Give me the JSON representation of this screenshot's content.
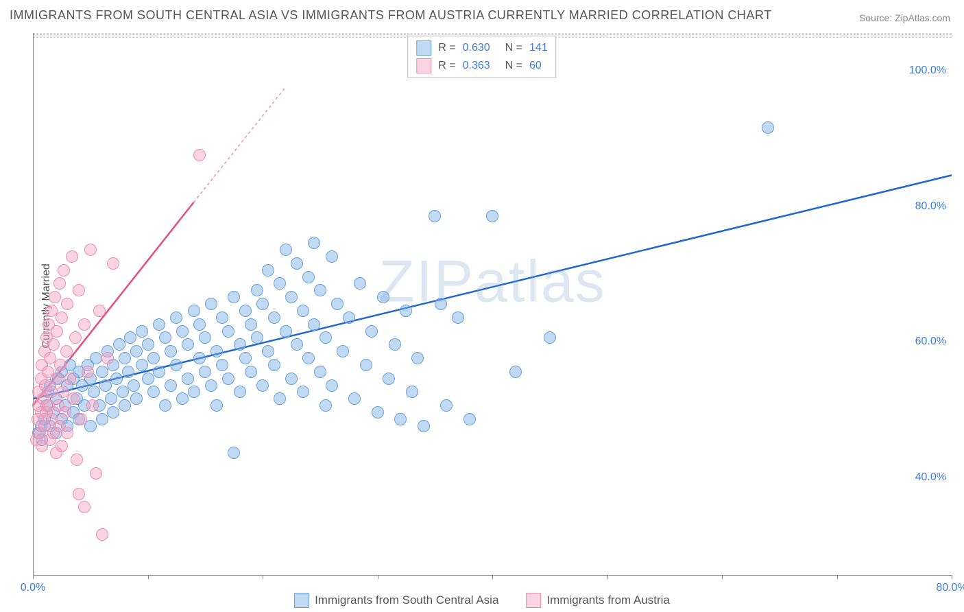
{
  "title": "IMMIGRANTS FROM SOUTH CENTRAL ASIA VS IMMIGRANTS FROM AUSTRIA CURRENTLY MARRIED CORRELATION CHART",
  "source": "Source: ZipAtlas.com",
  "ylabel": "Currently Married",
  "watermark": "ZIPatlas",
  "chart": {
    "type": "scatter",
    "background_color": "#ffffff",
    "grid_color": "#cccccc",
    "xlim": [
      0,
      80
    ],
    "ylim": [
      25,
      105
    ],
    "ytick_values": [
      40,
      60,
      80,
      100
    ],
    "ytick_labels": [
      "40.0%",
      "60.0%",
      "80.0%",
      "100.0%"
    ],
    "xtick_values": [
      0,
      10,
      20,
      30,
      40,
      50,
      60,
      70,
      80
    ],
    "xtick_labels": [
      "0.0%",
      "",
      "",
      "",
      "",
      "",
      "",
      "",
      "80.0%"
    ],
    "marker_radius": 8,
    "marker_border_width": 1.5,
    "series": [
      {
        "name": "Immigrants from South Central Asia",
        "fill_color": "rgba(120,170,230,0.45)",
        "stroke_color": "#6aa0d8",
        "R_label": "R =",
        "R_value": "0.630",
        "N_label": "N =",
        "N_value": "141",
        "trend": {
          "x1": 0,
          "y1": 51,
          "x2": 80,
          "y2": 84,
          "color": "#1e66d0",
          "width": 2.5,
          "dash": "none"
        },
        "points": [
          [
            0.5,
            46
          ],
          [
            0.7,
            47
          ],
          [
            0.8,
            45
          ],
          [
            1.0,
            48
          ],
          [
            1.2,
            50
          ],
          [
            1.3,
            52
          ],
          [
            1.5,
            47
          ],
          [
            1.5,
            53
          ],
          [
            1.8,
            49
          ],
          [
            2.0,
            46
          ],
          [
            2.0,
            51
          ],
          [
            2.2,
            54
          ],
          [
            2.5,
            48
          ],
          [
            2.5,
            55
          ],
          [
            2.8,
            50
          ],
          [
            3.0,
            47
          ],
          [
            3.0,
            53
          ],
          [
            3.2,
            56
          ],
          [
            3.5,
            49
          ],
          [
            3.5,
            54
          ],
          [
            3.8,
            51
          ],
          [
            4.0,
            48
          ],
          [
            4.0,
            55
          ],
          [
            4.3,
            53
          ],
          [
            4.5,
            50
          ],
          [
            4.8,
            56
          ],
          [
            5.0,
            47
          ],
          [
            5.0,
            54
          ],
          [
            5.3,
            52
          ],
          [
            5.5,
            57
          ],
          [
            5.8,
            50
          ],
          [
            6.0,
            55
          ],
          [
            6.0,
            48
          ],
          [
            6.3,
            53
          ],
          [
            6.5,
            58
          ],
          [
            6.8,
            51
          ],
          [
            7.0,
            56
          ],
          [
            7.0,
            49
          ],
          [
            7.3,
            54
          ],
          [
            7.5,
            59
          ],
          [
            7.8,
            52
          ],
          [
            8.0,
            57
          ],
          [
            8.0,
            50
          ],
          [
            8.3,
            55
          ],
          [
            8.5,
            60
          ],
          [
            8.8,
            53
          ],
          [
            9.0,
            58
          ],
          [
            9.0,
            51
          ],
          [
            9.5,
            56
          ],
          [
            9.5,
            61
          ],
          [
            10.0,
            54
          ],
          [
            10.0,
            59
          ],
          [
            10.5,
            52
          ],
          [
            10.5,
            57
          ],
          [
            11.0,
            62
          ],
          [
            11.0,
            55
          ],
          [
            11.5,
            50
          ],
          [
            11.5,
            60
          ],
          [
            12.0,
            53
          ],
          [
            12.0,
            58
          ],
          [
            12.5,
            63
          ],
          [
            12.5,
            56
          ],
          [
            13.0,
            51
          ],
          [
            13.0,
            61
          ],
          [
            13.5,
            54
          ],
          [
            13.5,
            59
          ],
          [
            14.0,
            64
          ],
          [
            14.0,
            52
          ],
          [
            14.5,
            57
          ],
          [
            14.5,
            62
          ],
          [
            15.0,
            55
          ],
          [
            15.0,
            60
          ],
          [
            15.5,
            53
          ],
          [
            15.5,
            65
          ],
          [
            16.0,
            58
          ],
          [
            16.0,
            50
          ],
          [
            16.5,
            63
          ],
          [
            16.5,
            56
          ],
          [
            17.0,
            61
          ],
          [
            17.0,
            54
          ],
          [
            17.5,
            66
          ],
          [
            17.5,
            43
          ],
          [
            18.0,
            59
          ],
          [
            18.0,
            52
          ],
          [
            18.5,
            64
          ],
          [
            18.5,
            57
          ],
          [
            19.0,
            62
          ],
          [
            19.0,
            55
          ],
          [
            19.5,
            67
          ],
          [
            19.5,
            60
          ],
          [
            20.0,
            53
          ],
          [
            20.0,
            65
          ],
          [
            20.5,
            58
          ],
          [
            20.5,
            70
          ],
          [
            21.0,
            63
          ],
          [
            21.0,
            56
          ],
          [
            21.5,
            68
          ],
          [
            21.5,
            51
          ],
          [
            22.0,
            61
          ],
          [
            22.0,
            73
          ],
          [
            22.5,
            54
          ],
          [
            22.5,
            66
          ],
          [
            23.0,
            59
          ],
          [
            23.0,
            71
          ],
          [
            23.5,
            64
          ],
          [
            23.5,
            52
          ],
          [
            24.0,
            69
          ],
          [
            24.0,
            57
          ],
          [
            24.5,
            62
          ],
          [
            24.5,
            74
          ],
          [
            25.0,
            55
          ],
          [
            25.0,
            67
          ],
          [
            25.5,
            60
          ],
          [
            25.5,
            50
          ],
          [
            26.0,
            72
          ],
          [
            26.0,
            53
          ],
          [
            26.5,
            65
          ],
          [
            27.0,
            58
          ],
          [
            27.5,
            63
          ],
          [
            28.0,
            51
          ],
          [
            28.5,
            68
          ],
          [
            29.0,
            56
          ],
          [
            29.5,
            61
          ],
          [
            30.0,
            49
          ],
          [
            30.5,
            66
          ],
          [
            31.0,
            54
          ],
          [
            31.5,
            59
          ],
          [
            32.0,
            48
          ],
          [
            32.5,
            64
          ],
          [
            33.0,
            52
          ],
          [
            33.5,
            57
          ],
          [
            34.0,
            47
          ],
          [
            35.0,
            78
          ],
          [
            35.5,
            65
          ],
          [
            36.0,
            50
          ],
          [
            37.0,
            63
          ],
          [
            38.0,
            48
          ],
          [
            40.0,
            78
          ],
          [
            42.0,
            55
          ],
          [
            45.0,
            60
          ],
          [
            64.0,
            91
          ]
        ]
      },
      {
        "name": "Immigrants from Austria",
        "fill_color": "rgba(245,160,190,0.45)",
        "stroke_color": "#e890b0",
        "R_label": "R =",
        "R_value": "0.363",
        "N_label": "N =",
        "N_value": "60",
        "trend": {
          "x1": 0,
          "y1": 50,
          "x2": 14,
          "y2": 80,
          "color": "#e05080",
          "width": 2.5,
          "dash": "none"
        },
        "trend_ext": {
          "x1": 14,
          "y1": 80,
          "x2": 22,
          "y2": 97,
          "color": "#e890b0",
          "width": 1.5,
          "dash": "4,4"
        },
        "points": [
          [
            0.3,
            45
          ],
          [
            0.4,
            48
          ],
          [
            0.5,
            50
          ],
          [
            0.5,
            52
          ],
          [
            0.6,
            46
          ],
          [
            0.7,
            54
          ],
          [
            0.7,
            49
          ],
          [
            0.8,
            56
          ],
          [
            0.8,
            44
          ],
          [
            0.9,
            51
          ],
          [
            1.0,
            58
          ],
          [
            1.0,
            47
          ],
          [
            1.1,
            53
          ],
          [
            1.2,
            60
          ],
          [
            1.2,
            49
          ],
          [
            1.3,
            55
          ],
          [
            1.4,
            62
          ],
          [
            1.4,
            50
          ],
          [
            1.5,
            57
          ],
          [
            1.5,
            45
          ],
          [
            1.6,
            64
          ],
          [
            1.6,
            52
          ],
          [
            1.7,
            48
          ],
          [
            1.8,
            59
          ],
          [
            1.8,
            46
          ],
          [
            1.9,
            66
          ],
          [
            2.0,
            54
          ],
          [
            2.0,
            43
          ],
          [
            2.1,
            61
          ],
          [
            2.2,
            50
          ],
          [
            2.3,
            68
          ],
          [
            2.3,
            47
          ],
          [
            2.4,
            56
          ],
          [
            2.5,
            63
          ],
          [
            2.5,
            44
          ],
          [
            2.6,
            52
          ],
          [
            2.7,
            70
          ],
          [
            2.8,
            49
          ],
          [
            2.9,
            58
          ],
          [
            3.0,
            65
          ],
          [
            3.0,
            46
          ],
          [
            3.2,
            54
          ],
          [
            3.4,
            72
          ],
          [
            3.5,
            51
          ],
          [
            3.7,
            60
          ],
          [
            3.8,
            42
          ],
          [
            4.0,
            67
          ],
          [
            4.0,
            37
          ],
          [
            4.2,
            48
          ],
          [
            4.5,
            62
          ],
          [
            4.5,
            35
          ],
          [
            4.8,
            55
          ],
          [
            5.0,
            73
          ],
          [
            5.2,
            50
          ],
          [
            5.5,
            40
          ],
          [
            5.8,
            64
          ],
          [
            6.0,
            31
          ],
          [
            6.5,
            57
          ],
          [
            7.0,
            71
          ],
          [
            14.5,
            87
          ]
        ]
      }
    ],
    "legend_value_color": "#3b7dd8",
    "legend_label_color": "#555"
  }
}
